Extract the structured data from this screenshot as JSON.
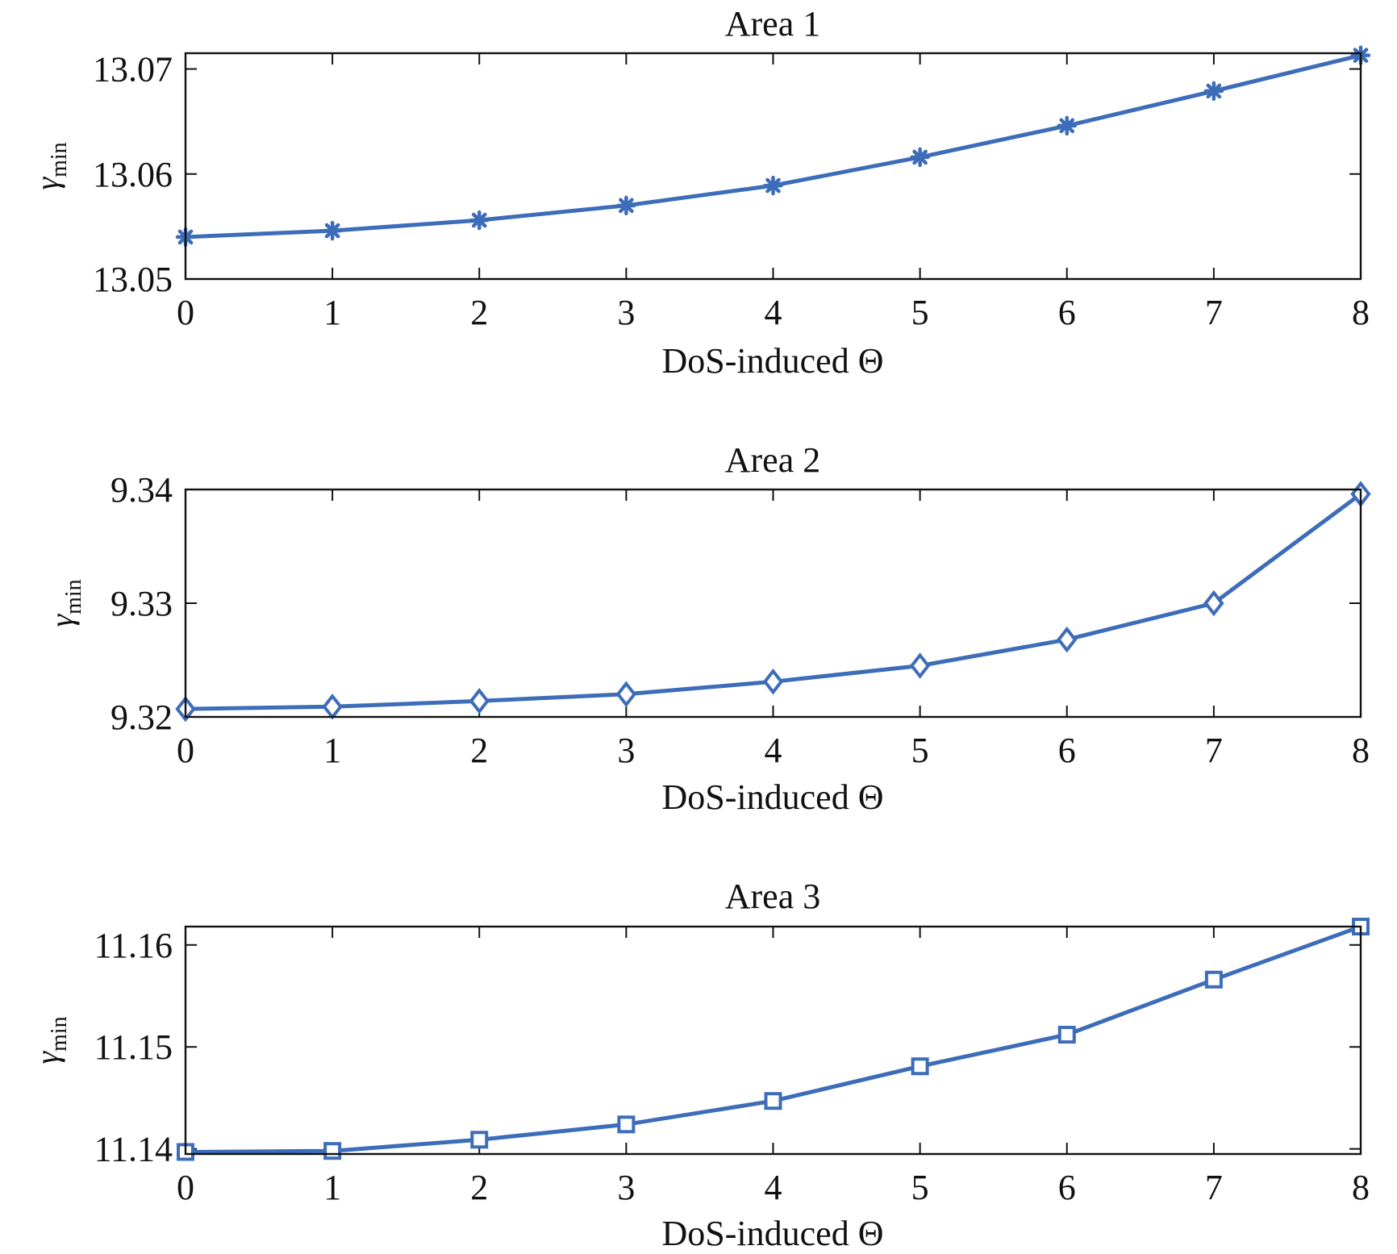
{
  "figure": {
    "line_color": "#3d6cb9",
    "axis_color": "#111111",
    "background": "#ffffff"
  },
  "chart_data": [
    {
      "type": "line",
      "title": "Area 1",
      "xlabel": "DoS-induced Θ",
      "ylabel_main": "γ",
      "ylabel_sub": "min",
      "x": [
        0,
        1,
        2,
        3,
        4,
        5,
        6,
        7,
        8
      ],
      "xlim": [
        0,
        8
      ],
      "xticks": [
        "0",
        "1",
        "2",
        "3",
        "4",
        "5",
        "6",
        "7",
        "8"
      ],
      "ylim": [
        13.05,
        13.0715
      ],
      "yticks": [
        13.05,
        13.06,
        13.07
      ],
      "ytick_labels": [
        "13.05",
        "13.06",
        "13.07"
      ],
      "marker": "asterisk",
      "series": [
        {
          "values": [
            13.054,
            13.0546,
            13.0556,
            13.057,
            13.0589,
            13.0616,
            13.0646,
            13.0679,
            13.0713
          ]
        }
      ],
      "grid": false
    },
    {
      "type": "line",
      "title": "Area 2",
      "xlabel": "DoS-induced Θ",
      "ylabel_main": "γ",
      "ylabel_sub": "min",
      "x": [
        0,
        1,
        2,
        3,
        4,
        5,
        6,
        7,
        8
      ],
      "xlim": [
        0,
        8
      ],
      "xticks": [
        "0",
        "1",
        "2",
        "3",
        "4",
        "5",
        "6",
        "7",
        "8"
      ],
      "ylim": [
        9.32,
        9.34
      ],
      "yticks": [
        9.32,
        9.33,
        9.34
      ],
      "ytick_labels": [
        "9.32",
        "9.33",
        "9.34"
      ],
      "marker": "diamond",
      "series": [
        {
          "values": [
            9.3207,
            9.3209,
            9.3214,
            9.322,
            9.3231,
            9.3245,
            9.3268,
            9.33,
            9.3396
          ]
        }
      ],
      "grid": false
    },
    {
      "type": "line",
      "title": "Area 3",
      "xlabel": "DoS-induced Θ",
      "ylabel_main": "γ",
      "ylabel_sub": "min",
      "x": [
        0,
        1,
        2,
        3,
        4,
        5,
        6,
        7,
        8
      ],
      "xlim": [
        0,
        8
      ],
      "xticks": [
        "0",
        "1",
        "2",
        "3",
        "4",
        "5",
        "6",
        "7",
        "8"
      ],
      "ylim": [
        11.1395,
        11.1618
      ],
      "yticks": [
        11.14,
        11.15,
        11.16
      ],
      "ytick_labels": [
        "11.14",
        "11.15",
        "11.16"
      ],
      "marker": "square",
      "series": [
        {
          "values": [
            11.1397,
            11.1398,
            11.1409,
            11.1424,
            11.1447,
            11.1481,
            11.1512,
            11.1566,
            11.1618
          ]
        }
      ],
      "grid": false
    }
  ]
}
